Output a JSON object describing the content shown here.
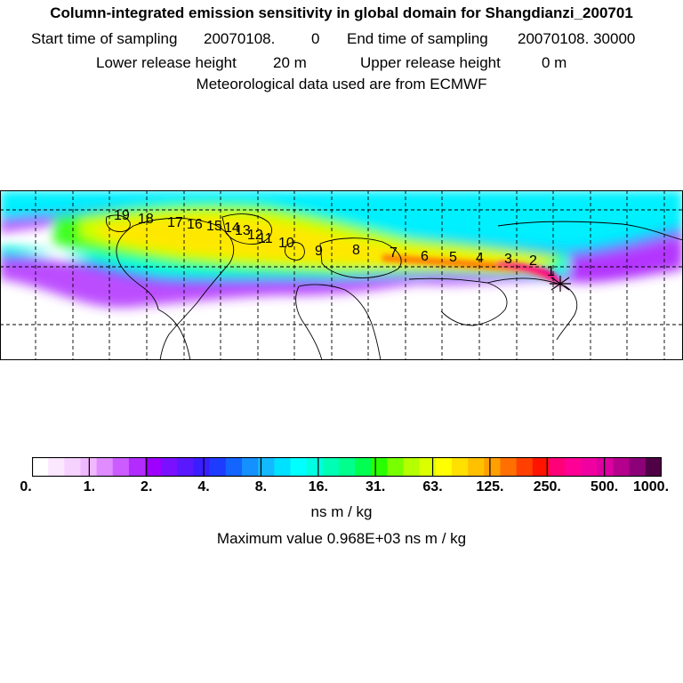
{
  "header": {
    "title": "Column-integrated emission sensitivity in global domain for Shangdianzi_200701",
    "start_label": "Start time of sampling",
    "start_value": "20070108.",
    "start_seconds": "0",
    "end_label": "End time of sampling",
    "end_value": "20070108. 30000",
    "lower_label": "Lower release height",
    "lower_value": "20 m",
    "upper_label": "Upper release height",
    "upper_value": "0 m",
    "met_line": "Meteorological data used are from ECMWF"
  },
  "map": {
    "trajectory_labels": [
      "19",
      "18",
      "17",
      "16",
      "15",
      "14",
      "13",
      "12",
      "11",
      "10",
      "9",
      "8",
      "7",
      "6",
      "5",
      "4",
      "3",
      "2",
      "1"
    ],
    "release_marker": "star"
  },
  "colorbar": {
    "tick_labels": [
      "0.",
      "1.",
      "2.",
      "4.",
      "8.",
      "16.",
      "31.",
      "63.",
      "125.",
      "250.",
      "500.",
      "1000."
    ],
    "colors": [
      "#ffffff",
      "#fbe8ff",
      "#f6d2ff",
      "#f0b8ff",
      "#e08cff",
      "#cc5cff",
      "#b22cff",
      "#9d00ff",
      "#7a10ff",
      "#5a18ff",
      "#3a1eff",
      "#1e3cff",
      "#1464ff",
      "#1490ff",
      "#14b8ff",
      "#00e0ff",
      "#00ffff",
      "#00ffe0",
      "#00ffb4",
      "#00ff8c",
      "#00ff50",
      "#28ff00",
      "#78ff00",
      "#b4ff00",
      "#dcff00",
      "#ffff00",
      "#ffe000",
      "#ffc000",
      "#ffa000",
      "#ff7000",
      "#ff4000",
      "#ff1400",
      "#ff0078",
      "#ff0096",
      "#f000a0",
      "#dc00a0",
      "#b4008c",
      "#8c0078",
      "#500046"
    ],
    "units": "ns m / kg",
    "max_label": "Maximum value",
    "max_value": "0.968E+03 ns m / kg"
  }
}
